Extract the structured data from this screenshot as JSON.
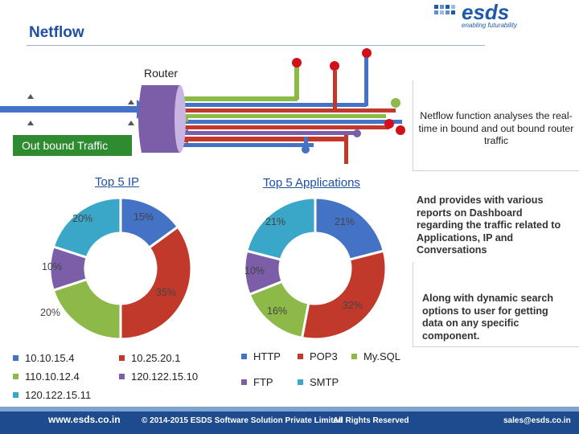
{
  "slide": {
    "title": "Netflow",
    "logo": {
      "word": "esds",
      "tagline": "enabling futurability"
    },
    "router_label": "Router",
    "outbound_label": "Out bound Traffic",
    "side_text_1": "Netflow function analyses the real-time in bound and out bound router traffic",
    "side_text_2": "And provides with various reports on Dashboard regarding the traffic related to Applications, IP and Conversations",
    "side_text_3": "Along with dynamic search options to user for getting data on any specific component."
  },
  "colors": {
    "blue": "#4472c4",
    "red": "#c0392b",
    "green": "#8db948",
    "purple": "#7b5ea7",
    "teal": "#3aa6c8",
    "router": "#7b5ea7",
    "outbound": "#2e8b2f",
    "footer": "#1e4a8e"
  },
  "chart_data": [
    {
      "type": "pie",
      "title": "Top 5 IP",
      "categories": [
        "10.10.15.4",
        "10.25.20.1",
        "110.10.12.4",
        "120.122.15.10",
        "120.122.15.11"
      ],
      "values": [
        15,
        35,
        20,
        10,
        20
      ],
      "labels": [
        "15%",
        "35%",
        "20%",
        "10%",
        "20%"
      ],
      "colors": [
        "#4472c4",
        "#c0392b",
        "#8db948",
        "#7b5ea7",
        "#3aa6c8"
      ],
      "legend": "bottom"
    },
    {
      "type": "pie",
      "title": "Top 5 Applications",
      "categories": [
        "HTTP",
        "POP3",
        "My.SQL",
        "FTP",
        "SMTP"
      ],
      "values": [
        21,
        32,
        16,
        10,
        21
      ],
      "labels": [
        "21%",
        "32%",
        "16%",
        "10%",
        "21%"
      ],
      "colors": [
        "#4472c4",
        "#c0392b",
        "#8db948",
        "#7b5ea7",
        "#3aa6c8"
      ],
      "legend": "bottom"
    }
  ],
  "footer": {
    "website": "www.esds.co.in",
    "copyright": "© 2014-2015 ESDS Software Solution Private Limited",
    "rights": "All Rights Reserved",
    "email": "sales@esds.co.in"
  }
}
